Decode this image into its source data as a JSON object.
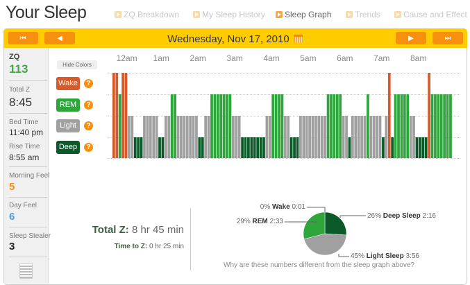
{
  "page_title": "Your Sleep",
  "tabs": [
    {
      "label": "ZQ Breakdown",
      "active": false
    },
    {
      "label": "My Sleep History",
      "active": false
    },
    {
      "label": "Sleep Graph",
      "active": true
    },
    {
      "label": "Trends",
      "active": false
    },
    {
      "label": "Cause and Effect",
      "active": false
    }
  ],
  "nav": {
    "first": "⏮",
    "prev": "◀",
    "next": "▶",
    "last": "⏭",
    "date": "Wednesday, Nov 17, 2010"
  },
  "sidebar": {
    "zq_label": "ZQ",
    "zq_value": "113",
    "total_z_label": "Total Z",
    "total_z_value": "8:45",
    "bed_time_label": "Bed Time",
    "bed_time_value": "11:40 pm",
    "rise_time_label": "Rise Time",
    "rise_time_value": "8:55 am",
    "morning_feel_label": "Morning Feel",
    "morning_feel_value": "5",
    "day_feel_label": "Day Feel",
    "day_feel_value": "6",
    "sleep_stealer_label": "Sleep Stealer",
    "sleep_stealer_value": "3"
  },
  "colors": {
    "wake": "#d65a2a",
    "rem": "#2ea63c",
    "light": "#a0a0a0",
    "deep": "#0b5a2a",
    "accent": "#f7900e",
    "header": "#ffcc00",
    "zq": "#3daa47",
    "morning": "#f7900e",
    "day": "#4a9fd8"
  },
  "graph": {
    "hide_colors_label": "Hide Colors",
    "hour_labels": [
      "12am",
      "1am",
      "2am",
      "3am",
      "4am",
      "5am",
      "6am",
      "7am",
      "8am"
    ],
    "legend": [
      {
        "key": "wake",
        "label": "Wake"
      },
      {
        "key": "rem",
        "label": "REM"
      },
      {
        "key": "light",
        "label": "Light"
      },
      {
        "key": "deep",
        "label": "Deep"
      }
    ],
    "help_label": "?",
    "start_time": "11:40 pm",
    "segments_minutes": [
      [
        "wake",
        10
      ],
      [
        "rem",
        5
      ],
      [
        "wake",
        10
      ],
      [
        "light",
        10
      ],
      [
        "deep",
        15
      ],
      [
        "light",
        25
      ],
      [
        "deep",
        10
      ],
      [
        "light",
        10
      ],
      [
        "rem",
        10
      ],
      [
        "light",
        35
      ],
      [
        "deep",
        10
      ],
      [
        "light",
        10
      ],
      [
        "rem",
        35
      ],
      [
        "light",
        15
      ],
      [
        "deep",
        40
      ],
      [
        "light",
        10
      ],
      [
        "rem",
        20
      ],
      [
        "light",
        10
      ],
      [
        "deep",
        15
      ],
      [
        "light",
        45
      ],
      [
        "rem",
        25
      ],
      [
        "light",
        10
      ],
      [
        "deep",
        5
      ],
      [
        "light",
        25
      ],
      [
        "rem",
        5
      ],
      [
        "light",
        20
      ],
      [
        "deep",
        5
      ],
      [
        "light",
        5
      ],
      [
        "wake",
        5
      ],
      [
        "deep",
        5
      ],
      [
        "rem",
        25
      ],
      [
        "light",
        10
      ],
      [
        "deep",
        20
      ],
      [
        "wake",
        5
      ],
      [
        "rem",
        35
      ]
    ]
  },
  "summary": {
    "total_z_label": "Total Z:",
    "total_z_value": "8 hr 45 min",
    "time_to_z_label": "Time to Z:",
    "time_to_z_value": "0 hr 25 min"
  },
  "chart_data": {
    "type": "pie",
    "slices": [
      {
        "name": "Deep Sleep",
        "percent": 26,
        "duration": "2:16",
        "pct_label": "26%"
      },
      {
        "name": "Light Sleep",
        "percent": 45,
        "duration": "3:56",
        "pct_label": "45%"
      },
      {
        "name": "REM",
        "percent": 29,
        "duration": "2:33",
        "pct_label": "29%"
      },
      {
        "name": "Wake",
        "percent": 0,
        "duration": "0:01",
        "pct_label": "0%"
      }
    ],
    "note": "Why are these numbers different from the sleep graph above?"
  }
}
